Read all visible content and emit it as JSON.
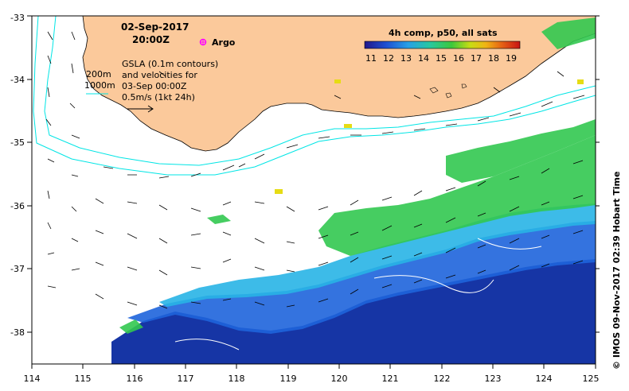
{
  "map": {
    "date_line": "02-Sep-2017",
    "time_line": "20:00Z",
    "argo_label": "Argo",
    "contour_200": "200m",
    "contour_1000": "1000m",
    "gsla_line1": "GSLA (0.1m contours)",
    "gsla_line2": "and velocities for",
    "gsla_line3": "03-Sep 00:00Z",
    "scale_label": "0.5m/s (1kt 24h)",
    "colorbar_title": "4h comp, p50, all sats",
    "colorbar_ticks": [
      "11",
      "12",
      "13",
      "14",
      "15",
      "16",
      "17",
      "18",
      "19"
    ],
    "credit": "© IMOS 09-Nov-2017 02:39 Hobart Time",
    "x_ticks": [
      "114",
      "115",
      "116",
      "117",
      "118",
      "119",
      "120",
      "121",
      "122",
      "123",
      "124",
      "125"
    ],
    "y_ticks": [
      "-33",
      "-34",
      "-35",
      "-36",
      "-37",
      "-38"
    ],
    "colors": {
      "land": "#fbc99b",
      "coast_contour": "#00e5e5",
      "sst_dark_blue": "#0a2aa0",
      "sst_blue": "#1e64dc",
      "sst_cyan": "#28b4e6",
      "sst_green": "#32c850",
      "sst_yellow": "#e6dc14",
      "argo": "#ff00ff"
    }
  }
}
